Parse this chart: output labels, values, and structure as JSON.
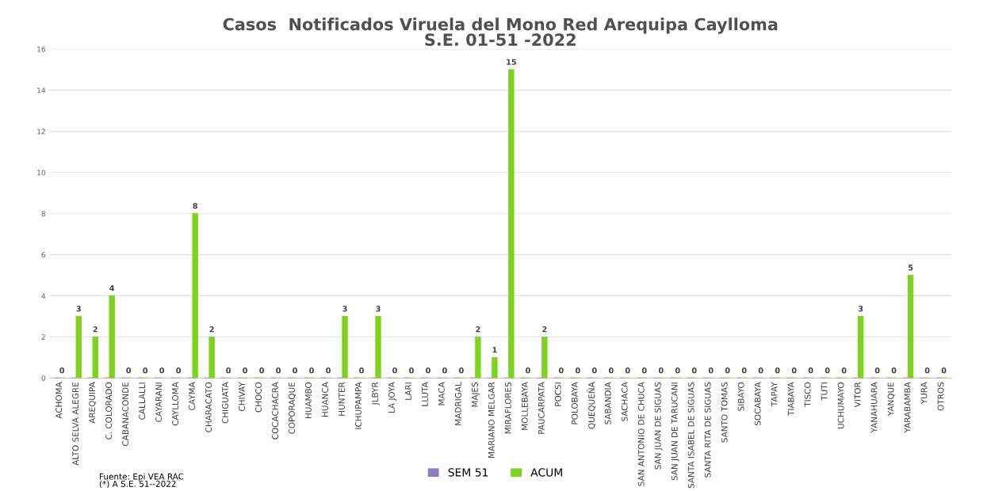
{
  "chart_data": {
    "type": "bar",
    "title": "Casos  Notificados Viruela del Mono Red Arequipa Caylloma\nS.E. 01-51 -2022",
    "categories": [
      "ACHOMA",
      "ALTO SELVA ALEGRE",
      "AREQUIPA",
      "C. COLORADO",
      "CABANACONDE",
      "CALLALLI",
      "CAYARANI",
      "CAYLLOMA",
      "CAYMA",
      "CHARACATO",
      "CHIGUATA",
      "CHIVAY",
      "CHOCO",
      "COCACHACRA",
      "COPORAQUE",
      "HUAMBO",
      "HUANCA",
      "HUNTER",
      "ICHUPAMPA",
      "JLBYR",
      "LA JOYA",
      "LARI",
      "LLUTA",
      "MACA",
      "MADRIGAL",
      "MAJES",
      "MARIANO MELGAR",
      "MIRAFLORES",
      "MOLLEBAYA",
      "PAUCARPATA",
      "POCSI",
      "POLOBAYA",
      "QUEQUEÑA",
      "SABANDIA",
      "SACHACA",
      "SAN ANTONIO DE CHUCA",
      "SAN JUAN DE SIGUAS",
      "SAN JUAN DE TARUCANI",
      "SANTA ISABEL DE SIGUAS",
      "SANTA RITA DE SIGUAS",
      "SANTO TOMAS",
      "SIBAYO",
      "SOCABAYA",
      "TAPAY",
      "TIABAYA",
      "TISCO",
      "TUTI",
      "UCHUMAYO",
      "VITOR",
      "YANAHUARA",
      "YANQUE",
      "YARABAMBA",
      "YURA",
      "OTROS"
    ],
    "series": [
      {
        "name": "SEM 51",
        "color": "#8e7cc3",
        "values": [
          0,
          0,
          0,
          0,
          0,
          0,
          0,
          0,
          0,
          0,
          0,
          0,
          0,
          0,
          0,
          0,
          0,
          0,
          0,
          0,
          0,
          0,
          0,
          0,
          0,
          0,
          0,
          0,
          0,
          0,
          0,
          0,
          0,
          0,
          0,
          0,
          0,
          0,
          0,
          0,
          0,
          0,
          0,
          0,
          0,
          0,
          0,
          0,
          0,
          0,
          0,
          0,
          0,
          0
        ]
      },
      {
        "name": "ACUM",
        "color": "#7ed321",
        "values": [
          0,
          3,
          2,
          4,
          0,
          0,
          0,
          0,
          8,
          2,
          0,
          0,
          0,
          0,
          0,
          0,
          0,
          3,
          0,
          3,
          0,
          0,
          0,
          0,
          0,
          2,
          1,
          15,
          0,
          2,
          0,
          0,
          0,
          0,
          0,
          0,
          0,
          0,
          0,
          0,
          0,
          0,
          0,
          0,
          0,
          0,
          0,
          0,
          3,
          0,
          0,
          5,
          0,
          0
        ],
        "value_labels": [
          "0",
          "3",
          "2",
          "4",
          "0",
          "0",
          "0",
          "0",
          "8",
          "2",
          "0",
          "0",
          "0",
          "0",
          "0",
          "0",
          "0",
          "3",
          "0",
          "3",
          "0",
          "0",
          "0",
          "0",
          "0",
          "2",
          "1",
          "15",
          "0",
          "2",
          "0",
          "0",
          "0",
          "0",
          "0",
          "0",
          "0",
          "0",
          "0",
          "0",
          "0",
          "0",
          "0",
          "0",
          "0",
          "0",
          "0",
          "0",
          "3",
          "0",
          "0",
          "5",
          "0",
          "0"
        ]
      }
    ],
    "ylim": [
      0,
      16
    ],
    "yticks": [
      0,
      2,
      4,
      6,
      8,
      10,
      12,
      14,
      16
    ],
    "grid": "y",
    "legend": "bottom",
    "annotations": [
      "Fuente: Epi VEA RAC\n(*) A S.E. 51--2022"
    ]
  }
}
